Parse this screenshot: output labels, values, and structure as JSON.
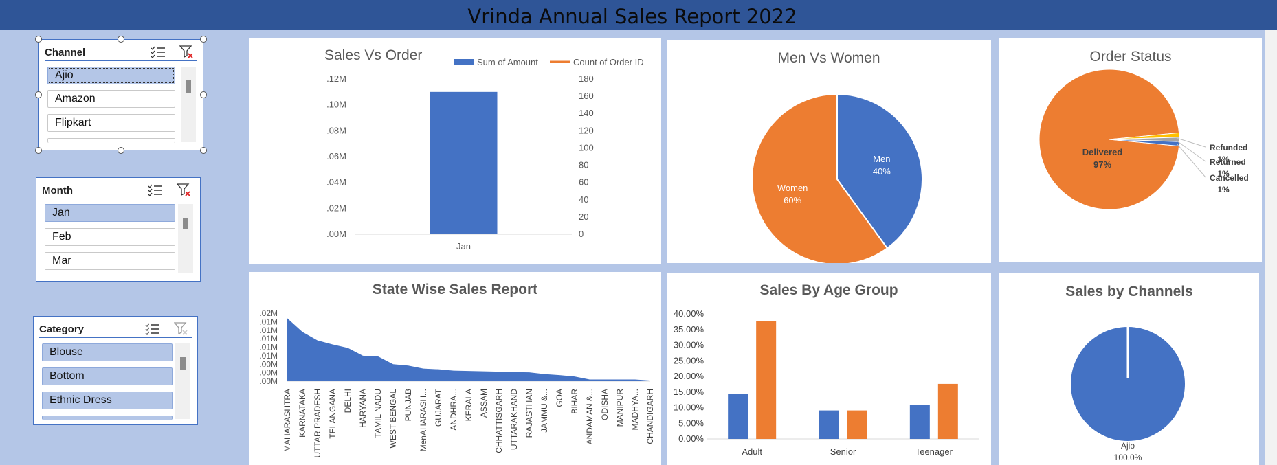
{
  "report_title": "Vrinda Annual Sales Report 2022",
  "colors": {
    "blue": "#4472c4",
    "orange": "#ed7d31",
    "gold": "#ffc000",
    "gray": "#a5a5a5",
    "header": "#2f5597",
    "background": "#b4c6e7"
  },
  "slicers": {
    "channel": {
      "title": "Channel",
      "items": [
        {
          "label": "Ajio"
        },
        {
          "label": "Amazon"
        },
        {
          "label": "Flipkart"
        }
      ],
      "selected": "Ajio"
    },
    "month": {
      "title": "Month",
      "items": [
        {
          "label": "Jan"
        },
        {
          "label": "Feb"
        },
        {
          "label": "Mar"
        }
      ],
      "selected": "Jan"
    },
    "category": {
      "title": "Category",
      "items": [
        {
          "label": "Blouse"
        },
        {
          "label": "Bottom"
        },
        {
          "label": "Ethnic Dress"
        }
      ],
      "selected": "all"
    }
  },
  "icons": {
    "multi_select": "multi-select-icon",
    "clear_filter": "clear-filter-icon"
  },
  "chart_data": [
    {
      "type": "bar",
      "title": "Sales Vs Order",
      "categories": [
        "Jan"
      ],
      "series": [
        {
          "name": "Sum of Amount",
          "values": [
            0.11
          ],
          "axis": "left",
          "color": "#4472c4"
        },
        {
          "name": "Count of Order ID",
          "values": [
            null
          ],
          "axis": "right",
          "color": "#ed7d31"
        }
      ],
      "left_axis": {
        "ticks": [
          ".00M",
          ".02M",
          ".04M",
          ".06M",
          ".08M",
          ".10M",
          ".12M"
        ],
        "ylim": [
          0,
          0.12
        ]
      },
      "right_axis": {
        "ticks": [
          "0",
          "20",
          "40",
          "60",
          "80",
          "100",
          "120",
          "140",
          "160",
          "180"
        ],
        "ylim": [
          0,
          180
        ]
      },
      "legend": "top-right"
    },
    {
      "type": "pie",
      "title": "Men Vs Women",
      "slices": [
        {
          "label": "Men",
          "value": 40,
          "display": "40%",
          "color": "#4472c4"
        },
        {
          "label": "Women",
          "value": 60,
          "display": "60%",
          "color": "#ed7d31"
        }
      ]
    },
    {
      "type": "pie",
      "title": "Order Status",
      "slices": [
        {
          "label": "Delivered",
          "value": 97,
          "display": "97%",
          "color": "#ed7d31"
        },
        {
          "label": "Refunded",
          "value": 1,
          "display": "1%",
          "color": "#ffc000"
        },
        {
          "label": "Returned",
          "value": 1,
          "display": "1%",
          "color": "#a5a5a5"
        },
        {
          "label": "Cancelled",
          "value": 1,
          "display": "1%",
          "color": "#4472c4"
        }
      ]
    },
    {
      "type": "area",
      "title": "State Wise Sales Report",
      "categories": [
        "MAHARASHTRA",
        "KARNATAKA",
        "UTTAR PRADESH",
        "TELANGANA",
        "DELHI",
        "HARYANA",
        "TAMIL NADU",
        "WEST BENGAL",
        "PUNJAB",
        "MenAHARASH...",
        "GUJARAT",
        "ANDHRA...",
        "KERALA",
        "ASSAM",
        "CHHATTISGARH",
        "UTTARAKHAND",
        "RAJASTHAN",
        "JAMMU &...",
        "GOA",
        "BIHAR",
        "ANDAMAN &...",
        "ODISHA",
        "MANIPUR",
        "MADHYA...",
        "CHANDIGARH"
      ],
      "values": [
        0.0185,
        0.0145,
        0.012,
        0.0108,
        0.0098,
        0.0075,
        0.0073,
        0.005,
        0.0046,
        0.0037,
        0.0035,
        0.0031,
        0.003,
        0.0029,
        0.0028,
        0.0027,
        0.0026,
        0.0021,
        0.0018,
        0.0014,
        0.0005,
        0.0005,
        0.0005,
        0.0005,
        0.0002
      ],
      "y_ticks": [
        ".00M",
        ".00M",
        ".00M",
        ".01M",
        ".01M",
        ".01M",
        ".01M",
        ".01M",
        ".02M"
      ],
      "ylim": [
        0,
        0.02
      ],
      "color": "#4472c4"
    },
    {
      "type": "bar",
      "title": "Sales By Age Group",
      "categories": [
        "Adult",
        "Senior",
        "Teenager"
      ],
      "series": [
        {
          "values": [
            14.5,
            9.1,
            10.9
          ],
          "color": "#4472c4"
        },
        {
          "values": [
            37.8,
            9.1,
            17.6
          ],
          "color": "#ed7d31"
        }
      ],
      "y_ticks": [
        "0.00%",
        "5.00%",
        "10.00%",
        "15.00%",
        "20.00%",
        "25.00%",
        "30.00%",
        "35.00%",
        "40.00%"
      ],
      "ylim": [
        0,
        40
      ]
    },
    {
      "type": "pie",
      "title": "Sales by Channels",
      "slices": [
        {
          "label": "Ajio",
          "value": 100,
          "display": "100.0%",
          "color": "#4472c4"
        }
      ]
    }
  ]
}
